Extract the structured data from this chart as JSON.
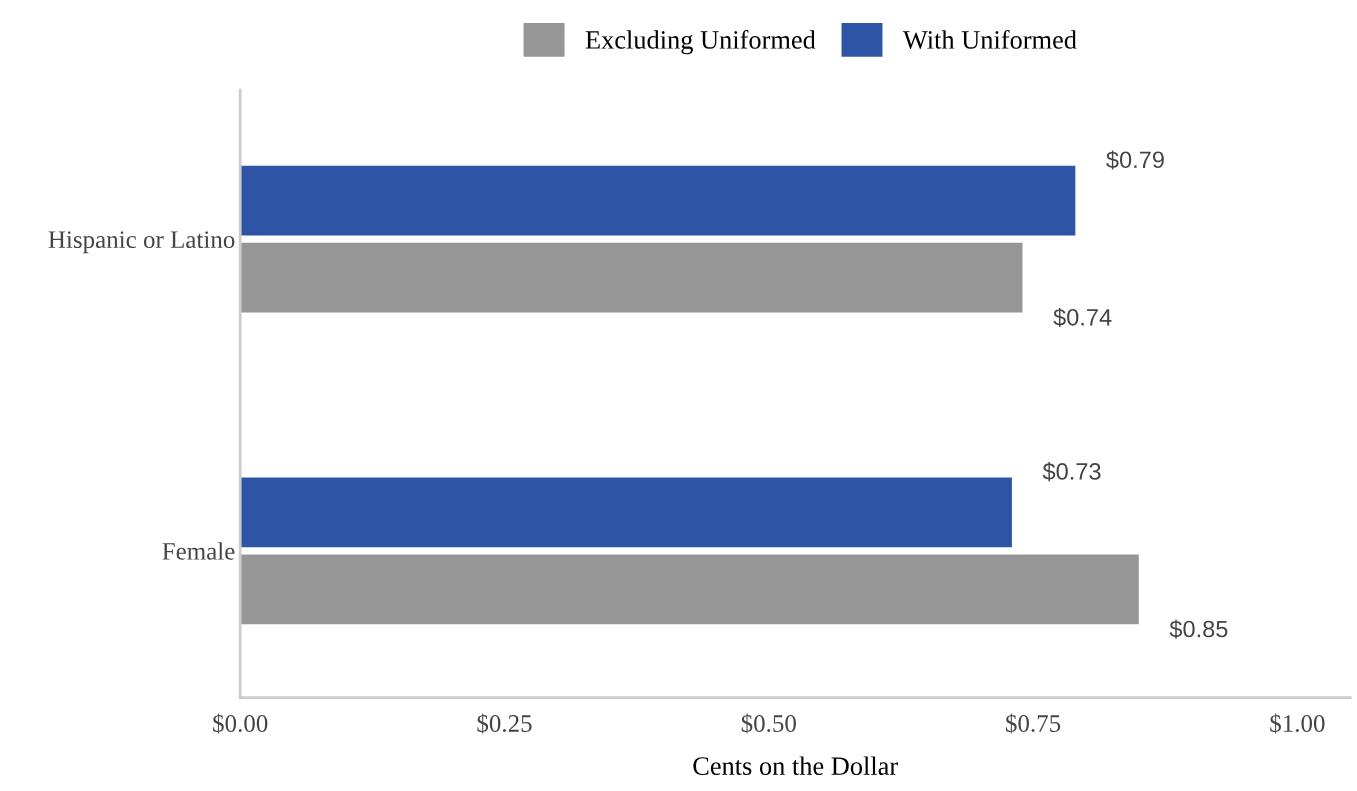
{
  "chart_data": {
    "type": "bar",
    "orientation": "horizontal",
    "xlabel": "Cents on the Dollar",
    "categories": [
      "Hispanic or Latino",
      "Female"
    ],
    "series": [
      {
        "name": "Excluding Uniformed",
        "color": "#969696",
        "values": [
          0.74,
          0.85
        ],
        "value_labels": [
          "$0.74",
          "$0.85"
        ]
      },
      {
        "name": "With Uniformed",
        "color": "#2e55a5",
        "values": [
          0.79,
          0.73
        ],
        "value_labels": [
          "$0.79",
          "$0.73"
        ]
      }
    ],
    "xlim": [
      0,
      1.05
    ],
    "xticks": [
      {
        "value": 0,
        "label": "$0.00"
      },
      {
        "value": 0.25,
        "label": "$0.25"
      },
      {
        "value": 0.5,
        "label": "$0.50"
      },
      {
        "value": 0.75,
        "label": "$0.75"
      },
      {
        "value": 1,
        "label": "$1.00"
      }
    ],
    "grid": false,
    "legend": "top"
  }
}
